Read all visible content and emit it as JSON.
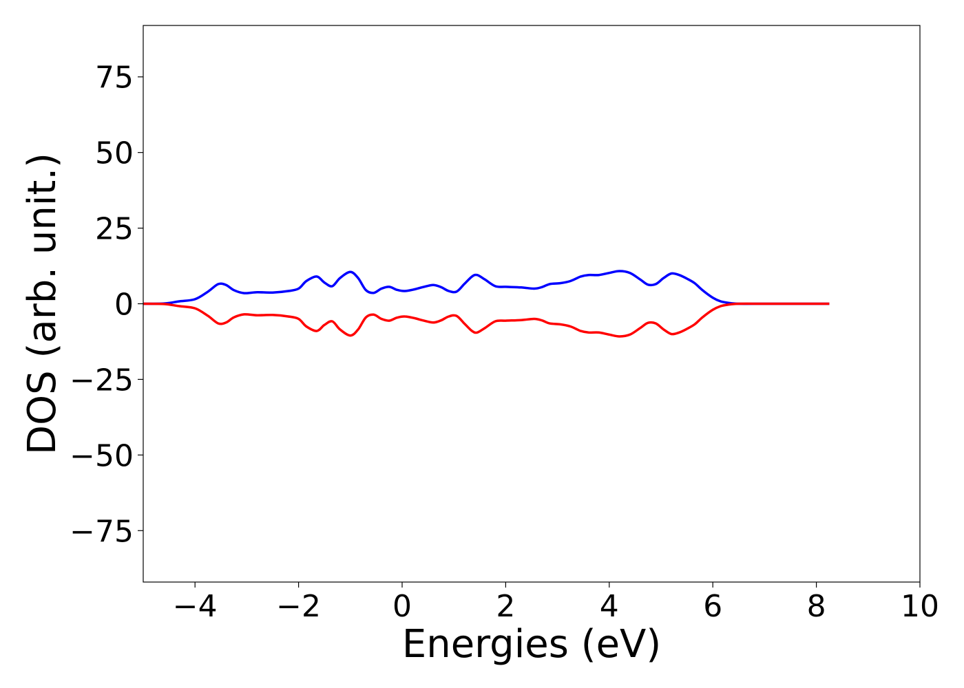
{
  "chart_data": {
    "type": "line",
    "title": "",
    "xlabel": "Energies (eV)",
    "ylabel": "DOS (arb. unit.)",
    "xlim": [
      -5,
      10
    ],
    "ylim": [
      -92,
      92
    ],
    "grid": false,
    "x_ticks": [
      -4,
      -2,
      0,
      2,
      4,
      6,
      8,
      10
    ],
    "x_tick_labels": [
      "−4",
      "−2",
      "0",
      "2",
      "4",
      "6",
      "8",
      "10"
    ],
    "y_ticks": [
      75,
      50,
      25,
      0,
      -25,
      -50,
      -75
    ],
    "y_tick_labels": [
      "75",
      "50",
      "25",
      "0",
      "−25",
      "−50",
      "−75"
    ],
    "x": [
      -5.0,
      -4.6,
      -4.3,
      -4.0,
      -3.75,
      -3.55,
      -3.4,
      -3.25,
      -3.05,
      -2.8,
      -2.5,
      -2.2,
      -2.0,
      -1.85,
      -1.65,
      -1.5,
      -1.35,
      -1.2,
      -1.0,
      -0.85,
      -0.7,
      -0.55,
      -0.4,
      -0.25,
      -0.1,
      0.05,
      0.25,
      0.4,
      0.6,
      0.75,
      0.9,
      1.05,
      1.2,
      1.35,
      1.45,
      1.6,
      1.8,
      2.0,
      2.3,
      2.55,
      2.7,
      2.85,
      3.05,
      3.25,
      3.45,
      3.6,
      3.8,
      4.0,
      4.2,
      4.4,
      4.6,
      4.75,
      4.9,
      5.05,
      5.2,
      5.35,
      5.5,
      5.65,
      5.8,
      6.0,
      6.15,
      6.3,
      6.5,
      7.0,
      7.5,
      8.0,
      8.25
    ],
    "series": [
      {
        "color": "#0000ff",
        "values": [
          0.0,
          0.1,
          0.8,
          1.5,
          4.0,
          6.5,
          6.2,
          4.5,
          3.5,
          3.8,
          3.7,
          4.2,
          5.0,
          7.5,
          9.0,
          7.0,
          5.8,
          8.5,
          10.5,
          8.5,
          4.5,
          3.6,
          5.0,
          5.6,
          4.6,
          4.2,
          4.8,
          5.5,
          6.2,
          5.5,
          4.2,
          4.0,
          6.5,
          9.0,
          9.5,
          8.0,
          5.8,
          5.6,
          5.4,
          5.0,
          5.5,
          6.5,
          6.8,
          7.5,
          9.0,
          9.5,
          9.5,
          10.2,
          10.8,
          10.2,
          8.0,
          6.3,
          6.5,
          8.5,
          10.0,
          9.5,
          8.3,
          6.8,
          4.5,
          2.0,
          0.8,
          0.3,
          0.0,
          0.0,
          0.0,
          0.0,
          0.0
        ]
      },
      {
        "color": "#ff0000",
        "values": [
          0.0,
          -0.1,
          -0.8,
          -1.5,
          -4.0,
          -6.5,
          -6.2,
          -4.5,
          -3.5,
          -3.8,
          -3.7,
          -4.2,
          -5.0,
          -7.5,
          -9.0,
          -7.0,
          -5.8,
          -8.5,
          -10.5,
          -8.5,
          -4.5,
          -3.6,
          -5.0,
          -5.6,
          -4.6,
          -4.2,
          -4.8,
          -5.5,
          -6.2,
          -5.5,
          -4.2,
          -4.0,
          -6.5,
          -9.0,
          -9.5,
          -8.0,
          -5.8,
          -5.6,
          -5.4,
          -5.0,
          -5.5,
          -6.5,
          -6.8,
          -7.5,
          -9.0,
          -9.5,
          -9.5,
          -10.2,
          -10.8,
          -10.2,
          -8.0,
          -6.3,
          -6.5,
          -8.5,
          -10.0,
          -9.5,
          -8.3,
          -6.8,
          -4.5,
          -2.0,
          -0.8,
          -0.3,
          0.0,
          0.0,
          0.0,
          0.0,
          0.0
        ]
      }
    ]
  }
}
